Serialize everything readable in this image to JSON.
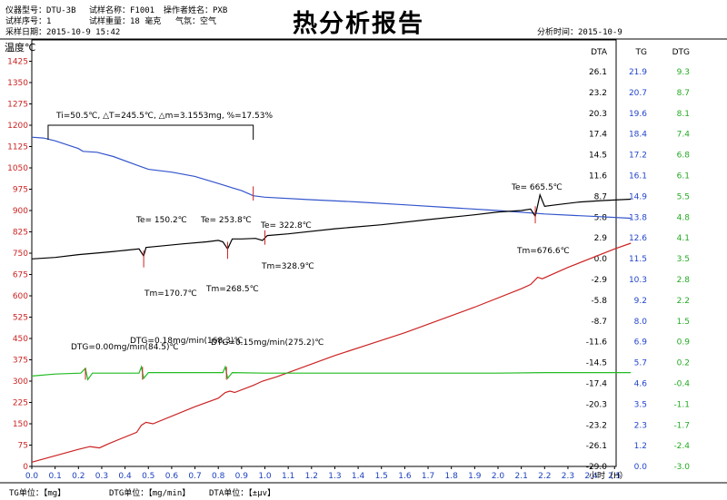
{
  "header": {
    "row1_model": "仪器型号：DTU-3B",
    "row1_name": "试样名称：F1001",
    "row1_operator": "操作者姓名：PXB",
    "row2_serial": "试样序号：1",
    "row2_weight": "试样重量：18   毫克",
    "row2_atmos": "气氛：空气",
    "row3_date": "采样日期：2015-10-9     15:42",
    "title": "热分析报告",
    "analysis_time": "分析时间：2015-10-9"
  },
  "footer": {
    "tg_unit": "TG单位：【mg】",
    "dtg_unit": "DTG单位：【mg/min】",
    "dta_unit": "DTA单位：【±μv】"
  },
  "chart_data": {
    "type": "line",
    "ylabel": "温度℃",
    "xlabel": "小时（H）",
    "xlim": [
      0,
      2.5
    ],
    "x_ticks": [
      "0.0",
      "0.1",
      "0.2",
      "0.3",
      "0.4",
      "0.5",
      "0.6",
      "0.7",
      "0.8",
      "0.9",
      "1.0",
      "1.1",
      "1.2",
      "1.3",
      "1.4",
      "1.5",
      "1.6",
      "1.7",
      "1.8",
      "1.9",
      "2.0",
      "2.1",
      "2.2",
      "2.3",
      "2.4",
      "2.5"
    ],
    "ylim": [
      0,
      1500
    ],
    "y_ticks": [
      "1425",
      "1350",
      "1275",
      "1200",
      "1125",
      "1050",
      "975",
      "900",
      "825",
      "750",
      "675",
      "600",
      "525",
      "450",
      "375",
      "300",
      "225",
      "150",
      "75",
      "0"
    ],
    "right_axes": {
      "headers": [
        "DTA",
        "TG",
        "DTG"
      ],
      "dta": [
        "26.1",
        "23.2",
        "20.3",
        "17.4",
        "14.5",
        "11.6",
        "8.7",
        "5.8",
        "2.9",
        "0.0",
        "-2.9",
        "-5.8",
        "-8.7",
        "-11.6",
        "-14.5",
        "-17.4",
        "-20.3",
        "-23.2",
        "-26.1",
        "-29.0"
      ],
      "tg": [
        "21.9",
        "20.7",
        "19.6",
        "18.4",
        "17.2",
        "16.1",
        "14.9",
        "13.8",
        "12.6",
        "11.5",
        "10.3",
        "9.2",
        "8.0",
        "6.9",
        "5.7",
        "4.6",
        "3.5",
        "2.3",
        "1.2",
        "0.0"
      ],
      "dtg": [
        "9.3",
        "8.7",
        "8.1",
        "7.4",
        "6.8",
        "6.1",
        "5.5",
        "4.8",
        "4.1",
        "3.5",
        "2.8",
        "2.2",
        "1.5",
        "0.9",
        "0.2",
        "-0.4",
        "-1.1",
        "-1.7",
        "-2.4",
        "-3.0"
      ]
    },
    "series": [
      {
        "color": "#cc2222",
        "points": [
          [
            0,
            15
          ],
          [
            0.2,
            60
          ],
          [
            0.25,
            70
          ],
          [
            0.29,
            65
          ],
          [
            0.33,
            80
          ],
          [
            0.45,
            120
          ],
          [
            0.47,
            145
          ],
          [
            0.49,
            155
          ],
          [
            0.52,
            150
          ],
          [
            0.7,
            210
          ],
          [
            0.8,
            240
          ],
          [
            0.83,
            260
          ],
          [
            0.85,
            265
          ],
          [
            0.87,
            260
          ],
          [
            0.95,
            285
          ],
          [
            0.99,
            300
          ],
          [
            1.01,
            305
          ],
          [
            1.05,
            315
          ],
          [
            1.3,
            390
          ],
          [
            1.6,
            470
          ],
          [
            1.9,
            560
          ],
          [
            2.1,
            625
          ],
          [
            2.14,
            640
          ],
          [
            2.17,
            665
          ],
          [
            2.19,
            660
          ],
          [
            2.3,
            700
          ],
          [
            2.5,
            765
          ],
          [
            2.57,
            785
          ]
        ]
      },
      {
        "color": "#3355cc",
        "points": [
          [
            0,
            1158
          ],
          [
            0.05,
            1155
          ],
          [
            0.1,
            1145
          ],
          [
            0.2,
            1118
          ],
          [
            0.22,
            1108
          ],
          [
            0.28,
            1105
          ],
          [
            0.35,
            1090
          ],
          [
            0.45,
            1060
          ],
          [
            0.5,
            1045
          ],
          [
            0.6,
            1035
          ],
          [
            0.7,
            1020
          ],
          [
            0.8,
            995
          ],
          [
            0.9,
            970
          ],
          [
            0.95,
            952
          ],
          [
            1.0,
            947
          ],
          [
            1.2,
            938
          ],
          [
            1.4,
            930
          ],
          [
            1.6,
            920
          ],
          [
            1.8,
            910
          ],
          [
            2.0,
            900
          ],
          [
            2.2,
            888
          ],
          [
            2.4,
            880
          ],
          [
            2.57,
            873
          ]
        ]
      },
      {
        "color": "#000000",
        "points": [
          [
            0,
            730
          ],
          [
            0.1,
            735
          ],
          [
            0.2,
            745
          ],
          [
            0.3,
            752
          ],
          [
            0.4,
            760
          ],
          [
            0.46,
            765
          ],
          [
            0.48,
            740
          ],
          [
            0.49,
            770
          ],
          [
            0.55,
            775
          ],
          [
            0.65,
            783
          ],
          [
            0.75,
            790
          ],
          [
            0.8,
            795
          ],
          [
            0.82,
            790
          ],
          [
            0.84,
            765
          ],
          [
            0.86,
            800
          ],
          [
            0.9,
            800
          ],
          [
            0.96,
            802
          ],
          [
            0.99,
            795
          ],
          [
            1.01,
            812
          ],
          [
            1.1,
            818
          ],
          [
            1.3,
            836
          ],
          [
            1.5,
            850
          ],
          [
            1.7,
            868
          ],
          [
            1.9,
            885
          ],
          [
            2.0,
            895
          ],
          [
            2.1,
            900
          ],
          [
            2.14,
            905
          ],
          [
            2.16,
            880
          ],
          [
            2.18,
            955
          ],
          [
            2.2,
            915
          ],
          [
            2.25,
            920
          ],
          [
            2.35,
            930
          ],
          [
            2.45,
            935
          ],
          [
            2.57,
            940
          ]
        ]
      },
      {
        "color": "#22bb22",
        "points": [
          [
            0,
            318
          ],
          [
            0.1,
            325
          ],
          [
            0.21,
            328
          ],
          [
            0.23,
            345
          ],
          [
            0.24,
            305
          ],
          [
            0.26,
            328
          ],
          [
            0.4,
            328
          ],
          [
            0.46,
            328
          ],
          [
            0.47,
            350
          ],
          [
            0.48,
            310
          ],
          [
            0.5,
            330
          ],
          [
            0.7,
            330
          ],
          [
            0.82,
            330
          ],
          [
            0.83,
            350
          ],
          [
            0.84,
            310
          ],
          [
            0.86,
            330
          ],
          [
            1.0,
            328
          ],
          [
            1.5,
            328
          ],
          [
            2.0,
            328
          ],
          [
            2.2,
            330
          ],
          [
            2.57,
            330
          ]
        ]
      }
    ],
    "annotations": {
      "step": "Ti=50.5℃, △T=245.5℃, △m=3.1553mg, %=17.53%",
      "te1": "Te= 150.2℃",
      "te2": "Te= 253.8℃",
      "te3": "Te= 322.8℃",
      "te4": "Te= 665.5℃",
      "tm1": "Tm=170.7℃",
      "tm2": "Tm=268.5℃",
      "tm3": "Tm=328.9℃",
      "tm4": "Tm=676.6℃",
      "dtg1": "DTG=0.00mg/min(84.5)℃",
      "dtg2": "DTG=0.18mg/min(168.3)℃",
      "dtg3": "DTG=0.15mg/min(275.2)℃"
    }
  }
}
